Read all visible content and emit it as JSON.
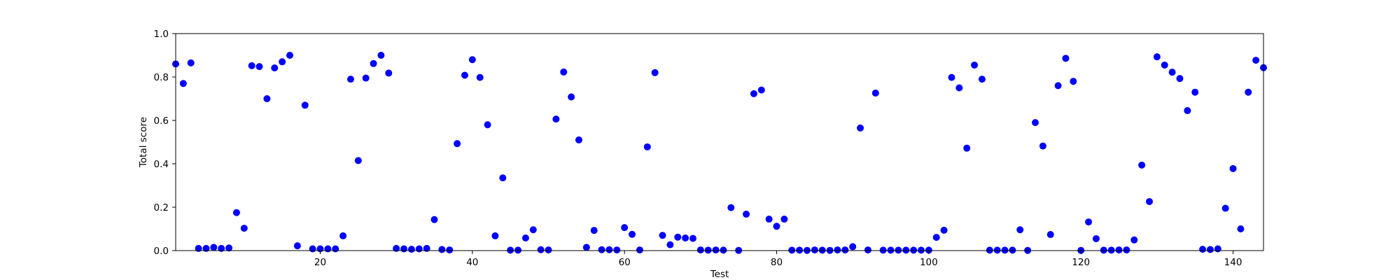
{
  "chart_data": {
    "type": "scatter",
    "title": "",
    "xlabel": "Test",
    "ylabel": "Total score",
    "xlim": [
      1,
      144
    ],
    "ylim": [
      0,
      1.0
    ],
    "xticks": [
      20,
      40,
      60,
      80,
      100,
      120,
      140
    ],
    "yticks": [
      0.0,
      0.2,
      0.4,
      0.6,
      0.8,
      1.0
    ],
    "ytick_labels": [
      "0.0",
      "0.2",
      "0.4",
      "0.6",
      "0.8",
      "1.0"
    ],
    "grid": false,
    "marker_color": "#0000ff",
    "series": [
      {
        "x": [
          1,
          2,
          3,
          4,
          5,
          6,
          7,
          8,
          9,
          10,
          11,
          12,
          13,
          14,
          15,
          16,
          17,
          18,
          19,
          20,
          21,
          22,
          23,
          24,
          25,
          26,
          27,
          28,
          29,
          30,
          31,
          32,
          33,
          34,
          35,
          36,
          37,
          38,
          39,
          40,
          41,
          42,
          43,
          44,
          45,
          46,
          47,
          48,
          49,
          50,
          51,
          52,
          53,
          54,
          55,
          56,
          57,
          58,
          59,
          60,
          61,
          62,
          63,
          64,
          65,
          66,
          67,
          68,
          69,
          70,
          71,
          72,
          73,
          74,
          75,
          76,
          77,
          78,
          79,
          80,
          81,
          82,
          83,
          84,
          85,
          86,
          87,
          88,
          89,
          90,
          91,
          92,
          93,
          94,
          95,
          96,
          97,
          98,
          99,
          100,
          101,
          102,
          103,
          104,
          105,
          106,
          107,
          108,
          109,
          110,
          111,
          112,
          113,
          114,
          115,
          116,
          117,
          118,
          119,
          120,
          121,
          122,
          123,
          124,
          125,
          126,
          127,
          128,
          129,
          130,
          131,
          132,
          133,
          134,
          135,
          136,
          137,
          138,
          139,
          140,
          141,
          142,
          143,
          144
        ],
        "y": [
          0.86,
          0.77,
          0.865,
          0.01,
          0.01,
          0.015,
          0.01,
          0.012,
          0.175,
          0.103,
          0.852,
          0.848,
          0.7,
          0.842,
          0.87,
          0.9,
          0.022,
          0.67,
          0.008,
          0.008,
          0.008,
          0.008,
          0.068,
          0.79,
          0.415,
          0.795,
          0.862,
          0.9,
          0.818,
          0.01,
          0.008,
          0.006,
          0.008,
          0.01,
          0.143,
          0.005,
          0.003,
          0.493,
          0.808,
          0.88,
          0.798,
          0.58,
          0.068,
          0.335,
          0.002,
          0.002,
          0.058,
          0.096,
          0.004,
          0.003,
          0.606,
          0.823,
          0.708,
          0.51,
          0.015,
          0.093,
          0.004,
          0.004,
          0.003,
          0.106,
          0.075,
          0.003,
          0.478,
          0.82,
          0.07,
          0.027,
          0.062,
          0.058,
          0.056,
          0.003,
          0.002,
          0.003,
          0.002,
          0.198,
          0.001,
          0.168,
          0.723,
          0.74,
          0.145,
          0.112,
          0.145,
          0.002,
          0.002,
          0.001,
          0.003,
          0.002,
          0.001,
          0.003,
          0.003,
          0.018,
          0.565,
          0.003,
          0.726,
          0.002,
          0.002,
          0.002,
          0.002,
          0.002,
          0.002,
          0.002,
          0.061,
          0.094,
          0.798,
          0.75,
          0.472,
          0.855,
          0.79,
          0.002,
          0.002,
          0.002,
          0.002,
          0.096,
          0.001,
          0.59,
          0.482,
          0.074,
          0.76,
          0.886,
          0.78,
          0.001,
          0.132,
          0.055,
          0.002,
          0.002,
          0.003,
          0.003,
          0.049,
          0.394,
          0.226,
          0.893,
          0.855,
          0.822,
          0.793,
          0.645,
          0.73,
          0.006,
          0.005,
          0.008,
          0.195,
          0.378,
          0.1,
          0.73,
          0.877,
          0.843
        ]
      }
    ]
  }
}
